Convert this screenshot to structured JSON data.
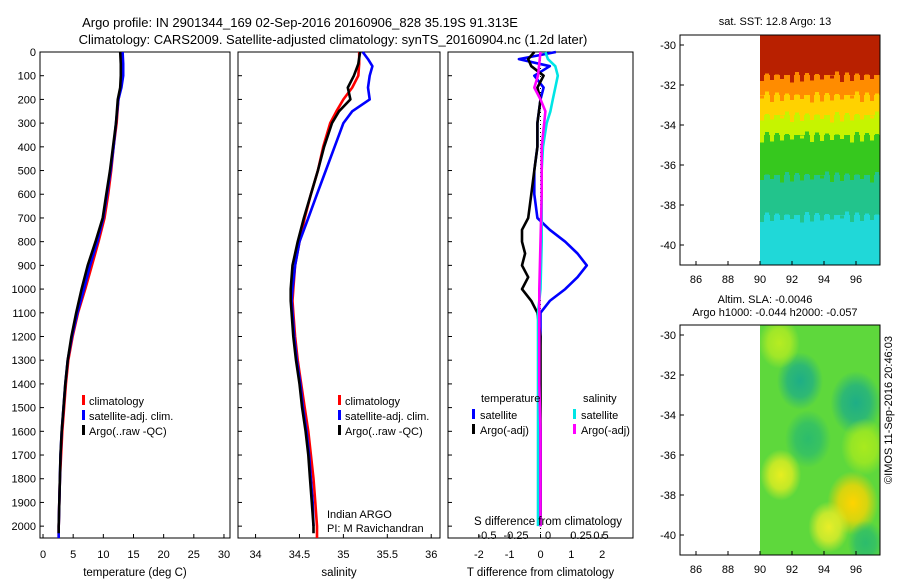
{
  "header": {
    "title_line1": "Argo profile: IN 2901344_169 02-Sep-2016 20160906_828 35.19S 91.313E",
    "title_line2": "Climatology: CARS2009. Satellite-adjusted climatology: synTS_20160904.nc (1.2d later)"
  },
  "colors": {
    "climatology": "#ff0000",
    "satellite_adj": "#0000ff",
    "argo": "#000000",
    "s_satellite": "#00e5e5",
    "s_argo": "#ff00ff"
  },
  "chart_data": [
    {
      "id": "temperature",
      "type": "line",
      "xlabel": "temperature (deg C)",
      "ylim": [
        2050,
        0
      ],
      "xlim": [
        -0.5,
        31
      ],
      "yticks": [
        0,
        100,
        200,
        300,
        400,
        500,
        600,
        700,
        800,
        900,
        1000,
        1100,
        1200,
        1300,
        1400,
        1500,
        1600,
        1700,
        1800,
        1900,
        2000
      ],
      "xticks": [
        0,
        5,
        10,
        15,
        20,
        25,
        30
      ],
      "legend": [
        "climatology",
        "satellite-adj. clim.",
        "Argo(..raw -QC)"
      ],
      "series": [
        {
          "name": "climatology",
          "color": "#ff0000",
          "depth": [
            0,
            50,
            100,
            150,
            200,
            300,
            400,
            500,
            600,
            700,
            800,
            900,
            1000,
            1100,
            1200,
            1300,
            1400,
            1500,
            1600,
            1700,
            1800,
            1900,
            2000,
            2050
          ],
          "values": [
            13.0,
            13.0,
            13.0,
            12.9,
            12.5,
            12.2,
            11.7,
            11.3,
            10.8,
            10.2,
            9.2,
            8.1,
            7.0,
            5.8,
            4.9,
            4.2,
            3.8,
            3.5,
            3.2,
            3.0,
            2.8,
            2.7,
            2.6,
            2.6
          ]
        },
        {
          "name": "satellite-adj. clim.",
          "color": "#0000ff",
          "depth": [
            0,
            50,
            100,
            150,
            200,
            300,
            400,
            500,
            600,
            700,
            800,
            900,
            1000,
            1100,
            1200,
            1300,
            1400,
            1500,
            1600,
            1700,
            1800,
            1900,
            2000,
            2050
          ],
          "values": [
            13.2,
            13.3,
            13.3,
            13.0,
            12.5,
            12.1,
            11.7,
            11.2,
            10.6,
            10.0,
            9.0,
            7.8,
            6.8,
            5.7,
            4.8,
            4.1,
            3.7,
            3.4,
            3.1,
            2.9,
            2.8,
            2.7,
            2.6,
            2.6
          ]
        },
        {
          "name": "Argo(..raw -QC)",
          "color": "#000000",
          "depth": [
            0,
            50,
            100,
            150,
            200,
            300,
            400,
            500,
            600,
            700,
            800,
            900,
            1000,
            1100,
            1200,
            1300,
            1400,
            1500,
            1600,
            1700,
            1800,
            1900,
            2000,
            2030
          ],
          "values": [
            12.8,
            12.9,
            12.9,
            12.8,
            12.4,
            12.1,
            11.6,
            11.1,
            10.5,
            9.9,
            8.7,
            7.4,
            6.4,
            5.5,
            4.7,
            4.1,
            3.7,
            3.4,
            3.1,
            2.9,
            2.8,
            2.7,
            2.6,
            2.6
          ]
        }
      ]
    },
    {
      "id": "salinity",
      "type": "line",
      "xlabel": "salinity",
      "ylim": [
        2050,
        0
      ],
      "xlim": [
        33.8,
        36.1
      ],
      "xticks": [
        34,
        34.5,
        35,
        35.5,
        36
      ],
      "legend": [
        "climatology",
        "satellite-adj. clim.",
        "Argo(..raw -QC)"
      ],
      "annotation_lines": [
        "Indian ARGO",
        "PI: M Ravichandran"
      ],
      "series": [
        {
          "name": "climatology",
          "color": "#ff0000",
          "depth": [
            0,
            50,
            100,
            150,
            200,
            250,
            300,
            400,
            500,
            600,
            700,
            800,
            900,
            1000,
            1050,
            1100,
            1200,
            1300,
            1400,
            1500,
            1600,
            1700,
            1800,
            1900,
            2000,
            2050
          ],
          "values": [
            35.18,
            35.18,
            35.17,
            35.1,
            35.0,
            34.92,
            34.85,
            34.77,
            34.71,
            34.63,
            34.56,
            34.5,
            34.45,
            34.43,
            34.42,
            34.43,
            34.45,
            34.48,
            34.52,
            34.56,
            34.6,
            34.63,
            34.66,
            34.68,
            34.7,
            34.7
          ]
        },
        {
          "name": "satellite-adj. clim.",
          "color": "#0000ff",
          "depth": [
            0,
            30,
            60,
            100,
            150,
            200,
            250,
            300,
            400,
            500,
            600,
            700,
            800,
            900,
            1000,
            1050,
            1100,
            1200,
            1300,
            1400,
            1500,
            1600,
            1700,
            1800,
            1900,
            2000
          ],
          "values": [
            35.22,
            35.28,
            35.33,
            35.3,
            35.28,
            35.3,
            35.1,
            35.0,
            34.9,
            34.8,
            34.7,
            34.6,
            34.5,
            34.45,
            34.42,
            34.41,
            34.42,
            34.44,
            34.47,
            34.51,
            34.54,
            34.58,
            34.61,
            34.63,
            34.65,
            34.66
          ]
        },
        {
          "name": "Argo(..raw -QC)",
          "color": "#000000",
          "depth": [
            0,
            50,
            100,
            150,
            200,
            250,
            300,
            400,
            500,
            600,
            700,
            800,
            900,
            1000,
            1050,
            1100,
            1200,
            1300,
            1400,
            1500,
            1600,
            1700,
            1800,
            1900,
            2000,
            2030
          ],
          "values": [
            35.19,
            35.17,
            35.12,
            35.05,
            35.08,
            34.95,
            34.87,
            34.78,
            34.71,
            34.63,
            34.55,
            34.48,
            34.42,
            34.4,
            34.4,
            34.41,
            34.43,
            34.46,
            34.5,
            34.53,
            34.57,
            34.6,
            34.62,
            34.64,
            34.66,
            34.66
          ]
        }
      ]
    },
    {
      "id": "difference",
      "type": "line",
      "xlabel": "T difference from climatology",
      "x2label": "S difference from climatology",
      "ylim": [
        2050,
        0
      ],
      "xlim": [
        -3,
        3
      ],
      "xticks": [
        -2,
        -1,
        0,
        1,
        2
      ],
      "x2ticks": [
        "-0.5",
        "-0.25",
        "0",
        "0.25",
        "0.5"
      ],
      "legend_headers": [
        "temperature",
        "salinity"
      ],
      "legend": [
        "satellite",
        "Argo(-adj)",
        "satellite",
        "Argo(-adj)"
      ],
      "series": [
        {
          "name": "T satellite",
          "color": "#0000ff",
          "depth": [
            0,
            30,
            60,
            100,
            150,
            200,
            300,
            400,
            500,
            600,
            700,
            750,
            800,
            850,
            900,
            950,
            1000,
            1050,
            1100,
            1200,
            1400,
            1600,
            1800,
            2000
          ],
          "values": [
            0.5,
            -0.7,
            0.3,
            -0.2,
            0.1,
            0.0,
            -0.1,
            -0.1,
            -0.2,
            -0.2,
            -0.1,
            0.3,
            0.8,
            1.2,
            1.5,
            1.2,
            0.8,
            0.3,
            0.0,
            0.0,
            -0.05,
            0.0,
            0.0,
            0.0
          ]
        },
        {
          "name": "T Argo(-adj)",
          "color": "#000000",
          "depth": [
            0,
            30,
            60,
            100,
            150,
            200,
            300,
            400,
            500,
            600,
            700,
            750,
            800,
            850,
            900,
            950,
            1000,
            1050,
            1100,
            1200,
            1400,
            1600,
            1800,
            2000
          ],
          "values": [
            -0.2,
            -0.4,
            -0.3,
            0.1,
            -0.1,
            0.0,
            -0.1,
            -0.1,
            -0.2,
            -0.3,
            -0.4,
            -0.6,
            -0.6,
            -0.5,
            -0.6,
            -0.4,
            -0.6,
            -0.3,
            -0.1,
            0.0,
            0.0,
            0.0,
            0.0,
            0.0
          ]
        },
        {
          "name": "S satellite",
          "color": "#00e5e5",
          "depth": [
            0,
            30,
            60,
            100,
            150,
            200,
            250,
            300,
            400,
            500,
            600,
            800,
            1000,
            1100,
            1200,
            1400,
            1600,
            1800,
            2000
          ],
          "values": [
            0.04,
            0.06,
            0.12,
            0.14,
            0.12,
            0.1,
            0.08,
            0.05,
            0.02,
            0.01,
            0.01,
            0.01,
            0.0,
            -0.02,
            -0.02,
            -0.02,
            -0.02,
            -0.02,
            -0.02
          ]
        },
        {
          "name": "S Argo(-adj)",
          "color": "#ff00ff",
          "depth": [
            0,
            100,
            150,
            200,
            250,
            300,
            400,
            500,
            600,
            800,
            1000,
            1100,
            1200,
            1400,
            1600,
            1800,
            2000
          ],
          "values": [
            0.0,
            -0.02,
            -0.05,
            0.0,
            0.04,
            0.03,
            0.01,
            0.01,
            0.01,
            0.0,
            -0.01,
            -0.01,
            -0.01,
            -0.01,
            0.0,
            0.0,
            0.0
          ]
        }
      ]
    },
    {
      "id": "sst_map",
      "type": "heatmap",
      "title": "sat. SST: 12.8  Argo: 13",
      "xlim": [
        85,
        97.5
      ],
      "ylim": [
        -41,
        -29.5
      ],
      "xticks": [
        86,
        88,
        90,
        92,
        94,
        96
      ],
      "yticks": [
        -30,
        -32,
        -34,
        -36,
        -38,
        -40
      ],
      "data_x_range": [
        90,
        97.5
      ],
      "bands": [
        {
          "lat_top": -29.5,
          "lat_bottom": -31.5,
          "color": "#b82000"
        },
        {
          "lat_top": -31.5,
          "lat_bottom": -32.5,
          "color": "#ff8c00"
        },
        {
          "lat_top": -32.5,
          "lat_bottom": -33.5,
          "color": "#ffd200"
        },
        {
          "lat_top": -33.5,
          "lat_bottom": -34.5,
          "color": "#c6f400"
        },
        {
          "lat_top": -34.5,
          "lat_bottom": -36.5,
          "color": "#36c81e"
        },
        {
          "lat_top": -36.5,
          "lat_bottom": -38.5,
          "color": "#22c48c"
        },
        {
          "lat_top": -38.5,
          "lat_bottom": -41,
          "color": "#20d8d8"
        }
      ]
    },
    {
      "id": "sla_map",
      "type": "heatmap",
      "title_line1": "Altim. SLA: -0.0046",
      "title_line2": "Argo h1000: -0.044 h2000: -0.057",
      "xlim": [
        85,
        97.5
      ],
      "ylim": [
        -41,
        -29.5
      ],
      "xticks": [
        86,
        88,
        90,
        92,
        94,
        96
      ],
      "yticks": [
        -30,
        -32,
        -34,
        -36,
        -38,
        -40
      ],
      "data_x_range": [
        90,
        97.5
      ],
      "base_color": "#5ed83c",
      "blobs": [
        {
          "lon": 92.5,
          "lat": -32.3,
          "r": 0.9,
          "color": "#1eae86"
        },
        {
          "lon": 96.0,
          "lat": -33.4,
          "r": 1.0,
          "color": "#1eae86"
        },
        {
          "lon": 93.0,
          "lat": -35.2,
          "r": 0.9,
          "color": "#2cbc6c"
        },
        {
          "lon": 96.5,
          "lat": -35.6,
          "r": 0.9,
          "color": "#a8ea1e"
        },
        {
          "lon": 91.3,
          "lat": -37.0,
          "r": 0.8,
          "color": "#e6ee20"
        },
        {
          "lon": 95.8,
          "lat": -38.4,
          "r": 1.0,
          "color": "#ffd400"
        },
        {
          "lon": 94.3,
          "lat": -39.6,
          "r": 0.8,
          "color": "#e8ee28"
        },
        {
          "lon": 91.2,
          "lat": -30.4,
          "r": 0.8,
          "color": "#b6ec22"
        },
        {
          "lon": 96.6,
          "lat": -40.4,
          "r": 0.7,
          "color": "#2cbc6c"
        }
      ]
    }
  ],
  "footer": {
    "credit": "©IMOS 11-Sep-2016 20:46:03"
  }
}
